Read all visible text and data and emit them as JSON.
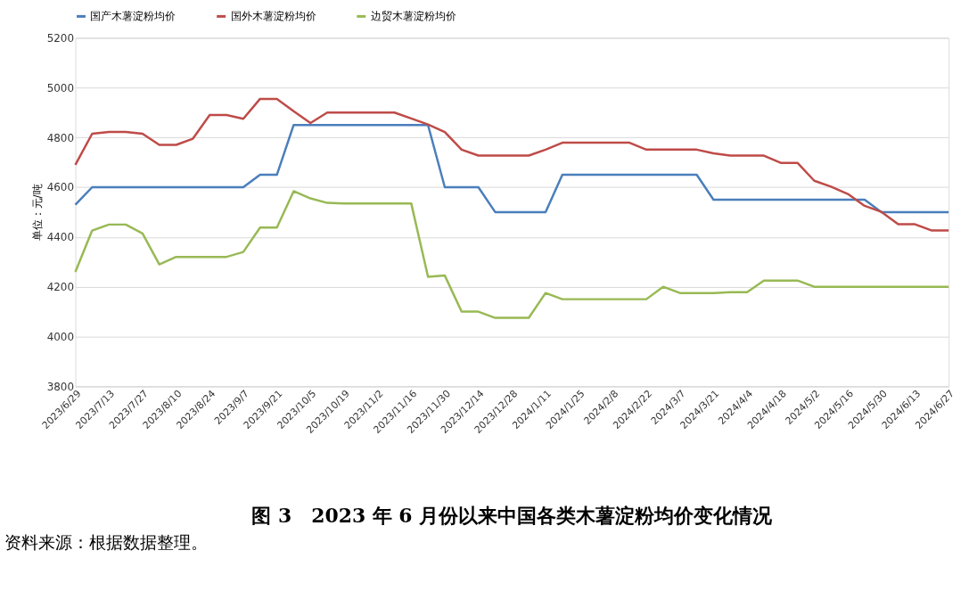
{
  "chart_data": {
    "type": "line",
    "title": "图 3　2023 年 6 月份以来中国各类木薯淀粉均价变化情况",
    "ylabel": "单位：元/吨",
    "annotations": [
      "资料来源：根据数据整理。"
    ],
    "categories": [
      "2023/6/29",
      null,
      "2023/7/13",
      null,
      "2023/7/27",
      null,
      "2023/8/10",
      null,
      "2023/8/24",
      null,
      "2023/9/7",
      null,
      "2023/9/21",
      null,
      "2023/10/5",
      null,
      "2023/10/19",
      null,
      "2023/11/2",
      null,
      "2023/11/16",
      null,
      "2023/11/30",
      null,
      "2023/12/14",
      null,
      "2023/12/28",
      null,
      "2024/1/11",
      null,
      "2024/1/25",
      null,
      "2024/2/8",
      null,
      "2024/2/22",
      null,
      "2024/3/7",
      null,
      "2024/3/21",
      null,
      "2024/4/4",
      null,
      "2024/4/18",
      null,
      "2024/5/2",
      null,
      "2024/5/16",
      null,
      "2024/5/30",
      null,
      "2024/6/13",
      null,
      "2024/6/27"
    ],
    "series": [
      {
        "name": "国产木薯淀粉均价",
        "color": "#4a7ebb",
        "values": [
          4530,
          4600,
          4600,
          4600,
          4600,
          4600,
          4600,
          4600,
          4600,
          4600,
          4600,
          4650,
          4650,
          4850,
          4850,
          4850,
          4850,
          4850,
          4850,
          4850,
          4850,
          4850,
          4600,
          4600,
          4600,
          4500,
          4500,
          4500,
          4500,
          4650,
          4650,
          4650,
          4650,
          4650,
          4650,
          4650,
          4650,
          4650,
          4550,
          4550,
          4550,
          4550,
          4550,
          4550,
          4550,
          4550,
          4550,
          4550,
          4500,
          4500,
          4500,
          4500,
          4500
        ]
      },
      {
        "name": "国外木薯淀粉均价",
        "color": "#be4b48",
        "values": [
          4690,
          4815,
          4822,
          4822,
          4815,
          4770,
          4770,
          4795,
          4890,
          4890,
          4875,
          4955,
          4955,
          4905,
          4858,
          4900,
          4900,
          4900,
          4900,
          4900,
          4876,
          4852,
          4822,
          4751,
          4727,
          4727,
          4727,
          4727,
          4751,
          4779,
          4779,
          4779,
          4779,
          4779,
          4751,
          4751,
          4751,
          4751,
          4736,
          4727,
          4727,
          4727,
          4698,
          4698,
          4626,
          4602,
          4573,
          4525,
          4501,
          4451,
          4451,
          4426,
          4426
        ]
      },
      {
        "name": "边贸木薯淀粉均价",
        "color": "#98b954",
        "values": [
          4260,
          4426,
          4450,
          4450,
          4414,
          4290,
          4320,
          4320,
          4320,
          4320,
          4340,
          4438,
          4438,
          4584,
          4555,
          4537,
          4535,
          4535,
          4535,
          4535,
          4535,
          4240,
          4245,
          4100,
          4100,
          4075,
          4075,
          4075,
          4175,
          4150,
          4150,
          4150,
          4150,
          4150,
          4150,
          4200,
          4175,
          4175,
          4175,
          4178,
          4178,
          4225,
          4225,
          4225,
          4200,
          4200,
          4200,
          4200,
          4200,
          4200,
          4200,
          4200,
          4200
        ]
      }
    ],
    "ylim": [
      3800,
      5200
    ],
    "yticks": [
      3800,
      4000,
      4200,
      4400,
      4600,
      4800,
      5000,
      5200
    ],
    "grid": "y",
    "legend": "top",
    "marker": "none",
    "line_style": "solid"
  }
}
